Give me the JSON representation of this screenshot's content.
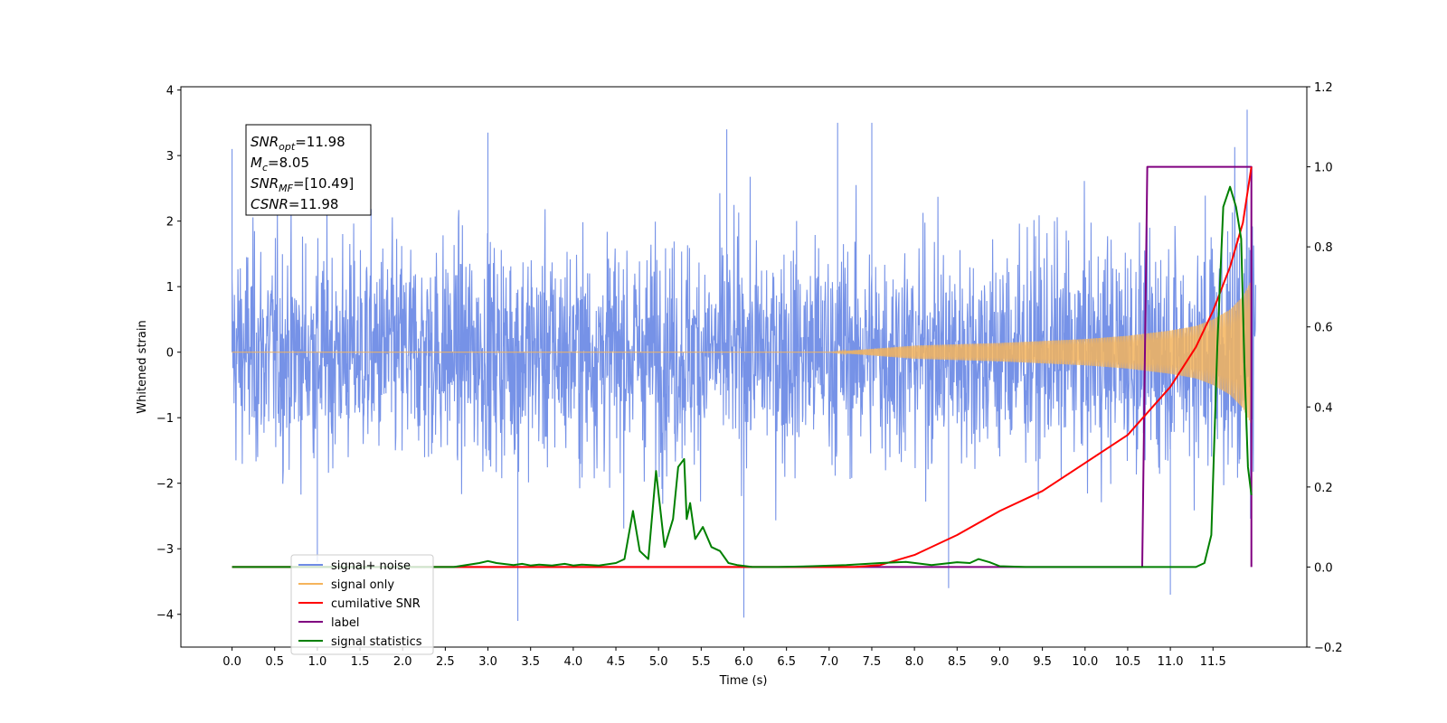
{
  "chart_data": {
    "type": "line",
    "xlabel": "Time (s)",
    "ylabel": "Whitened strain",
    "xlim": [
      -0.6,
      12.6
    ],
    "ylim": [
      -4.5,
      4.05
    ],
    "y2lim": [
      -0.2,
      1.2
    ],
    "x_ticks": [
      0.0,
      0.5,
      1.0,
      1.5,
      2.0,
      2.5,
      3.0,
      3.5,
      4.0,
      4.5,
      5.0,
      5.5,
      6.0,
      6.5,
      7.0,
      7.5,
      8.0,
      8.5,
      9.0,
      9.5,
      10.0,
      10.5,
      11.0,
      11.5
    ],
    "x_tick_labels": [
      "0.0",
      "0.5",
      "1.0",
      "1.5",
      "2.0",
      "2.5",
      "3.0",
      "3.5",
      "4.0",
      "4.5",
      "5.0",
      "5.5",
      "6.0",
      "6.5",
      "7.0",
      "7.5",
      "8.0",
      "8.5",
      "9.0",
      "9.5",
      "10.0",
      "10.5",
      "11.0",
      "11.5"
    ],
    "y_ticks": [
      -4,
      -3,
      -2,
      -1,
      0,
      1,
      2,
      3,
      4
    ],
    "y_tick_labels": [
      "−4",
      "−3",
      "−2",
      "−1",
      "0",
      "1",
      "2",
      "3",
      "4"
    ],
    "y2_ticks": [
      -0.2,
      0.0,
      0.2,
      0.4,
      0.6,
      0.8,
      1.0,
      1.2
    ],
    "y2_tick_labels": [
      "−0.2",
      "0.0",
      "0.2",
      "0.4",
      "0.6",
      "0.8",
      "1.0",
      "1.2"
    ],
    "grid": false,
    "legend_placement": "lower-left",
    "annotation": [
      {
        "base": "SNR",
        "sub": "opt",
        "value": "=11.98"
      },
      {
        "base": "M",
        "sub": "c",
        "value": "=8.05"
      },
      {
        "base": "SNR",
        "sub": "MF",
        "value": "=[10.49]"
      },
      {
        "base": "CSNR",
        "sub": "",
        "value": "=11.98"
      }
    ],
    "series": [
      {
        "name": "signal+ noise",
        "axis": "left",
        "color": "#6f8ce6",
        "style": "dense noisy strain, envelope roughly ±2.5 with spikes to ±3.6",
        "x_range": [
          0.0,
          12.0
        ],
        "points": [
          [
            0.0,
            3.1
          ],
          [
            1.0,
            -3.2
          ],
          [
            3.0,
            3.35
          ],
          [
            3.35,
            -4.1
          ],
          [
            5.8,
            3.4
          ],
          [
            6.0,
            -4.05
          ],
          [
            7.1,
            3.5
          ],
          [
            7.5,
            3.5
          ],
          [
            8.4,
            -3.6
          ],
          [
            11.0,
            -3.7
          ],
          [
            11.9,
            3.7
          ]
        ]
      },
      {
        "name": "signal only",
        "axis": "left",
        "color": "#f5b45c",
        "style": "chirp with growing amplitude",
        "envelope_x": [
          0.0,
          7.0,
          7.5,
          8.0,
          8.5,
          9.0,
          9.5,
          10.0,
          10.5,
          11.0,
          11.3,
          11.5,
          11.7,
          11.85,
          11.95
        ],
        "envelope_amp": [
          0.0,
          0.0,
          0.05,
          0.1,
          0.12,
          0.14,
          0.17,
          0.2,
          0.25,
          0.33,
          0.4,
          0.5,
          0.65,
          0.85,
          1.1
        ]
      },
      {
        "name": "cumilative SNR",
        "axis": "right",
        "color": "#ff0000",
        "x": [
          0.0,
          7.3,
          7.6,
          8.0,
          8.5,
          9.0,
          9.5,
          10.0,
          10.5,
          11.0,
          11.3,
          11.5,
          11.7,
          11.85,
          11.95
        ],
        "y": [
          0.0,
          0.0,
          0.005,
          0.03,
          0.08,
          0.14,
          0.19,
          0.26,
          0.33,
          0.45,
          0.55,
          0.64,
          0.75,
          0.86,
          1.0
        ]
      },
      {
        "name": "label",
        "axis": "right",
        "color": "#800080",
        "x": [
          0.0,
          10.67,
          10.73,
          11.95,
          11.95
        ],
        "y": [
          0.0,
          0.0,
          1.0,
          1.0,
          0.0
        ]
      },
      {
        "name": "signal statistics",
        "axis": "right",
        "color": "#008000",
        "x": [
          0.0,
          2.6,
          2.9,
          3.0,
          3.1,
          3.3,
          3.4,
          3.5,
          3.6,
          3.75,
          3.9,
          4.0,
          4.1,
          4.3,
          4.5,
          4.6,
          4.7,
          4.78,
          4.88,
          4.97,
          5.07,
          5.17,
          5.23,
          5.3,
          5.33,
          5.37,
          5.43,
          5.52,
          5.62,
          5.72,
          5.82,
          5.92,
          6.1,
          6.4,
          6.8,
          7.2,
          7.6,
          7.9,
          8.2,
          8.5,
          8.65,
          8.75,
          8.88,
          9.0,
          9.3,
          10.0,
          10.8,
          11.3,
          11.4,
          11.48,
          11.55,
          11.62,
          11.7,
          11.77,
          11.83,
          11.87,
          11.91,
          11.95
        ],
        "y": [
          0.0,
          0.0,
          0.01,
          0.015,
          0.01,
          0.005,
          0.008,
          0.004,
          0.006,
          0.004,
          0.008,
          0.004,
          0.006,
          0.004,
          0.01,
          0.02,
          0.14,
          0.04,
          0.02,
          0.24,
          0.05,
          0.12,
          0.25,
          0.27,
          0.12,
          0.16,
          0.07,
          0.1,
          0.05,
          0.04,
          0.01,
          0.005,
          0.0,
          0.0,
          0.002,
          0.005,
          0.01,
          0.013,
          0.005,
          0.012,
          0.01,
          0.02,
          0.012,
          0.002,
          0.0,
          0.0,
          0.0,
          0.0,
          0.01,
          0.08,
          0.55,
          0.9,
          0.95,
          0.9,
          0.82,
          0.5,
          0.25,
          0.18
        ]
      }
    ]
  }
}
